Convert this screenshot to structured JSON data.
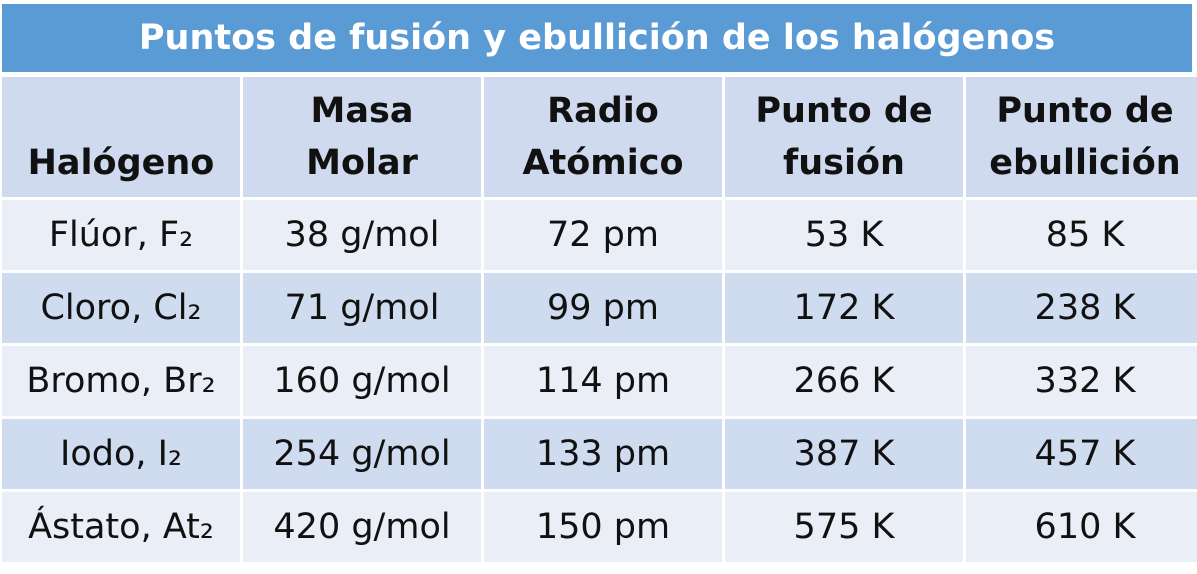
{
  "title": "Puntos de fusión y ebullición de los halógenos",
  "table": {
    "header": [
      [
        "Halógeno"
      ],
      [
        "Masa",
        "Molar"
      ],
      [
        "Radio",
        "Atómico"
      ],
      [
        "Punto de",
        "fusión"
      ],
      [
        "Punto de",
        "ebullición"
      ]
    ],
    "rows": [
      [
        "Flúor, F₂",
        "38 g/mol",
        "72 pm",
        "53 K",
        "85 K"
      ],
      [
        "Cloro, Cl₂",
        "71 g/mol",
        "99 pm",
        "172 K",
        "238 K"
      ],
      [
        "Bromo, Br₂",
        "160 g/mol",
        "114 pm",
        "266 K",
        "332 K"
      ],
      [
        "Iodo, I₂",
        "254 g/mol",
        "133 pm",
        "387 K",
        "457 K"
      ],
      [
        "Ástato, At₂",
        "420 g/mol",
        "150 pm",
        "575 K",
        "610 K"
      ]
    ]
  }
}
